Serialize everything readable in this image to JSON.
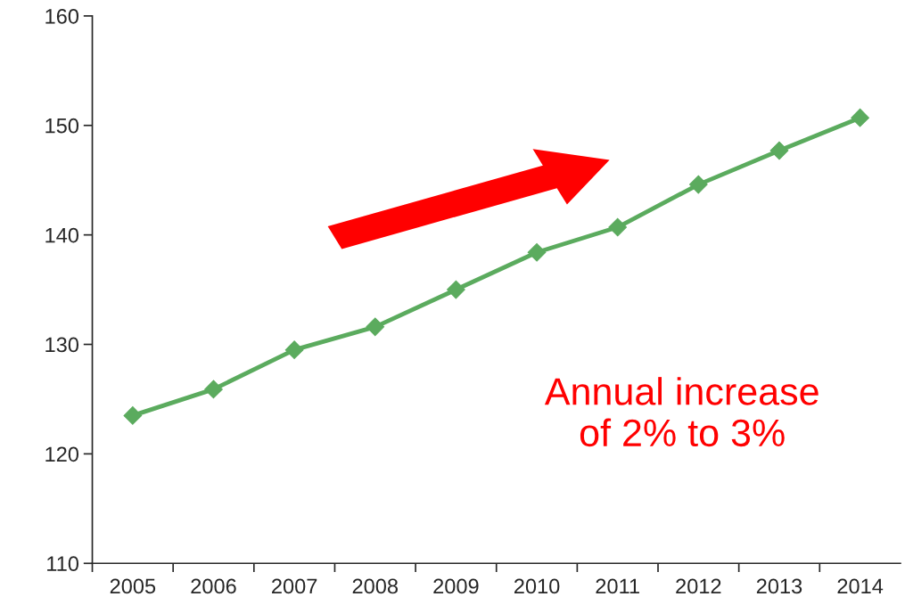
{
  "chart_data": {
    "type": "line",
    "categories": [
      "2005",
      "2006",
      "2007",
      "2008",
      "2009",
      "2010",
      "2011",
      "2012",
      "2013",
      "2014"
    ],
    "series": [
      {
        "color": "#5bab5e",
        "values": [
          123.5,
          125.9,
          129.5,
          131.6,
          135.0,
          138.4,
          140.7,
          144.6,
          147.7,
          150.7
        ]
      }
    ],
    "ylim": [
      110,
      160
    ],
    "yticks": [
      110,
      120,
      130,
      140,
      150,
      160
    ],
    "marker": "diamond",
    "line_style": "solid",
    "grid": false,
    "legend": false,
    "annotations": [
      "Annual increase\nof 2% to 3%"
    ]
  }
}
